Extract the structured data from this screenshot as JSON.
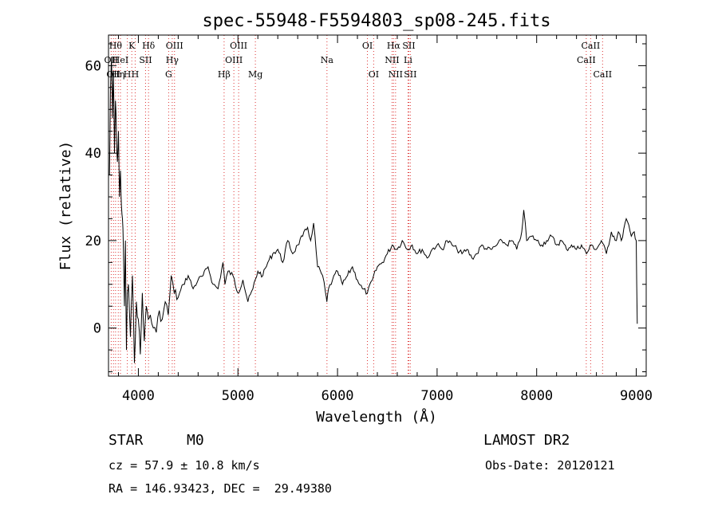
{
  "chart_data": {
    "type": "line",
    "title": "spec-55948-F5594803_sp08-245.fits",
    "xlabel": "Wavelength (Å)",
    "ylabel": "Flux (relative)",
    "xlim": [
      3700,
      9100
    ],
    "ylim": [
      -11,
      67
    ],
    "xticks": [
      "4000",
      "5000",
      "6000",
      "7000",
      "8000",
      "9000"
    ],
    "yticks": [
      "0",
      "20",
      "40",
      "60"
    ],
    "x_tick_values": [
      4000,
      5000,
      6000,
      7000,
      8000,
      9000
    ],
    "y_tick_values": [
      0,
      20,
      40,
      60
    ],
    "grid": false,
    "series": [
      {
        "x": [
          3710,
          3720,
          3730,
          3740,
          3750,
          3760,
          3770,
          3780,
          3790,
          3800,
          3810,
          3820,
          3830,
          3840,
          3850,
          3860,
          3870,
          3880,
          3890,
          3900,
          3920,
          3940,
          3960,
          3980,
          4000,
          4020,
          4040,
          4060,
          4080,
          4100,
          4120,
          4150,
          4180,
          4210,
          4240,
          4270,
          4300,
          4330,
          4360,
          4400,
          4450,
          4500,
          4550,
          4600,
          4650,
          4700,
          4750,
          4800,
          4850,
          4870,
          4900,
          4950,
          5000,
          5050,
          5100,
          5150,
          5200,
          5250,
          5300,
          5350,
          5400,
          5450,
          5500,
          5550,
          5600,
          5650,
          5700,
          5730,
          5760,
          5800,
          5850,
          5880,
          5893,
          5910,
          5950,
          6000,
          6050,
          6100,
          6150,
          6200,
          6250,
          6300,
          6350,
          6400,
          6450,
          6500,
          6550,
          6600,
          6650,
          6700,
          6750,
          6800,
          6850,
          6900,
          6950,
          7000,
          7050,
          7100,
          7150,
          7200,
          7250,
          7300,
          7350,
          7400,
          7450,
          7500,
          7550,
          7600,
          7650,
          7700,
          7750,
          7800,
          7830,
          7850,
          7870,
          7900,
          7950,
          8000,
          8050,
          8100,
          8150,
          8200,
          8250,
          8300,
          8350,
          8400,
          8450,
          8500,
          8550,
          8600,
          8650,
          8700,
          8750,
          8800,
          8820,
          8850,
          8900,
          8950,
          8980,
          9000,
          9010
        ],
        "y": [
          35,
          55,
          62,
          48,
          58,
          40,
          52,
          44,
          38,
          45,
          30,
          36,
          28,
          25,
          18,
          5,
          20,
          -5,
          8,
          10,
          -2,
          12,
          -8,
          6,
          2,
          -6,
          8,
          -3,
          5,
          2,
          3,
          0,
          -1,
          4,
          2,
          6,
          3,
          12,
          8,
          7,
          10,
          12,
          9,
          11,
          12,
          14,
          10,
          9,
          15,
          10,
          13,
          12,
          8,
          11,
          6,
          9,
          13,
          12,
          15,
          17,
          18,
          15,
          20,
          17,
          19,
          21,
          23,
          20,
          24,
          14,
          12,
          8,
          6,
          9,
          11,
          13,
          10,
          12,
          14,
          11,
          9,
          8,
          11,
          14,
          15,
          17,
          19,
          18,
          20,
          18,
          19,
          17,
          18,
          16,
          18,
          19,
          18,
          20,
          19,
          18,
          17,
          18,
          16,
          17,
          19,
          18,
          18,
          19,
          20,
          19,
          20,
          18,
          20,
          22,
          27,
          20,
          21,
          20,
          19,
          20,
          21,
          19,
          20,
          18,
          19,
          18,
          19,
          17,
          19,
          18,
          20,
          17,
          22,
          20,
          22,
          20,
          25,
          21,
          22,
          20,
          1
        ]
      }
    ],
    "line_markers": [
      {
        "wave": 3727,
        "label": "OII",
        "row": 1
      },
      {
        "wave": 3750,
        "label": "OII",
        "row": 2
      },
      {
        "wave": 3771,
        "label": "Hθ",
        "row": 0
      },
      {
        "wave": 3798,
        "label": "Hη",
        "row": 2
      },
      {
        "wave": 3820,
        "label": "HeI",
        "row": 1
      },
      {
        "wave": 3889,
        "label": "H",
        "row": 2
      },
      {
        "wave": 3934,
        "label": "K",
        "row": 0
      },
      {
        "wave": 3968,
        "label": "H",
        "row": 2
      },
      {
        "wave": 4072,
        "label": "SII",
        "row": 1
      },
      {
        "wave": 4102,
        "label": "Hδ",
        "row": 0
      },
      {
        "wave": 4304,
        "label": "G",
        "row": 2
      },
      {
        "wave": 4340,
        "label": "Hγ",
        "row": 1
      },
      {
        "wave": 4363,
        "label": "OIII",
        "row": 0
      },
      {
        "wave": 4861,
        "label": "Hβ",
        "row": 2
      },
      {
        "wave": 4959,
        "label": "OIII",
        "row": 1
      },
      {
        "wave": 5007,
        "label": "OIII",
        "row": 0
      },
      {
        "wave": 5175,
        "label": "Mg",
        "row": 2
      },
      {
        "wave": 5894,
        "label": "Na",
        "row": 1
      },
      {
        "wave": 6300,
        "label": "OI",
        "row": 0
      },
      {
        "wave": 6363,
        "label": "OI",
        "row": 2
      },
      {
        "wave": 6548,
        "label": "NII",
        "row": 1
      },
      {
        "wave": 6563,
        "label": "Hα",
        "row": 0
      },
      {
        "wave": 6583,
        "label": "NII",
        "row": 2
      },
      {
        "wave": 6708,
        "label": "Li",
        "row": 1
      },
      {
        "wave": 6716,
        "label": "SII",
        "row": 0
      },
      {
        "wave": 6731,
        "label": "SII",
        "row": 2
      },
      {
        "wave": 8498,
        "label": "CaII",
        "row": 1
      },
      {
        "wave": 8542,
        "label": "CaII",
        "row": 0
      },
      {
        "wave": 8662,
        "label": "CaII",
        "row": 2
      }
    ]
  },
  "info": {
    "class_type": "STAR",
    "subclass": "M0",
    "survey": "LAMOST DR2",
    "cz": "cz = 57.9 ± 10.8 km/s",
    "obs_date": "Obs-Date: 20120121",
    "radec": "RA = 146.93423, DEC =  29.49380"
  }
}
